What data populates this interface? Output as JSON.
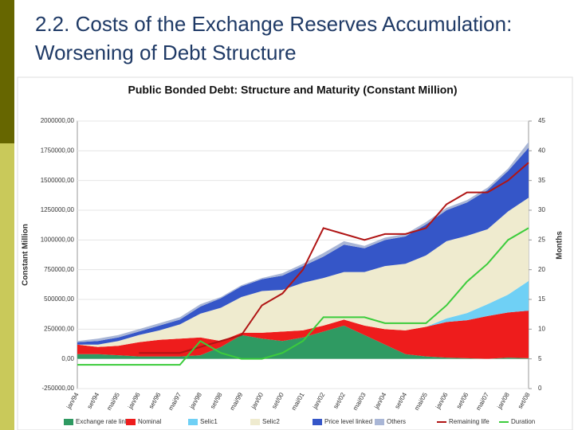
{
  "slide_title": "2.2. Costs of the Exchange Reserves Accumulation: Worsening of Debt Structure",
  "chart_data": {
    "type": "area",
    "stacked": true,
    "title": "Public Bonded Debt: Structure and Maturity (Constant Million)",
    "y_label": "Constant Million",
    "y2_label": "Months",
    "categories": [
      "jan/94",
      "set/94",
      "mai/95",
      "jan/96",
      "set/96",
      "mai/97",
      "jan/98",
      "set/98",
      "mai/99",
      "jan/00",
      "set/00",
      "mai/01",
      "jan/02",
      "set/02",
      "mai/03",
      "jan/04",
      "set/04",
      "mai/05",
      "jan/06",
      "set/06",
      "mai/07",
      "jan/08",
      "set/08"
    ],
    "ylim": [
      -250000,
      2000000
    ],
    "yticks": [
      {
        "value": -250000,
        "label": "-250000,00"
      },
      {
        "value": 0,
        "label": "0,00"
      },
      {
        "value": 250000,
        "label": "250000,00"
      },
      {
        "value": 500000,
        "label": "500000,00"
      },
      {
        "value": 750000,
        "label": "750000,00"
      },
      {
        "value": 1000000,
        "label": "1000000,00"
      },
      {
        "value": 1250000,
        "label": "1250000,00"
      },
      {
        "value": 1500000,
        "label": "1500000,00"
      },
      {
        "value": 1750000,
        "label": "1750000,00"
      },
      {
        "value": 2000000,
        "label": "2000000,00"
      }
    ],
    "y2lim": [
      0,
      45
    ],
    "y2ticks": [
      0,
      5,
      10,
      15,
      20,
      25,
      30,
      35,
      40,
      45
    ],
    "series": [
      {
        "name": "Exchange rate linked",
        "color": "#2f9a62",
        "values": [
          40000,
          40000,
          30000,
          20000,
          20000,
          20000,
          30000,
          100000,
          200000,
          170000,
          150000,
          180000,
          230000,
          280000,
          200000,
          120000,
          40000,
          20000,
          10000,
          5000,
          0,
          10000,
          5000
        ]
      },
      {
        "name": "Nominal",
        "color": "#ee1c1c",
        "values": [
          80000,
          60000,
          80000,
          120000,
          140000,
          150000,
          150000,
          50000,
          20000,
          50000,
          80000,
          60000,
          50000,
          50000,
          80000,
          130000,
          200000,
          250000,
          300000,
          320000,
          360000,
          380000,
          400000
        ]
      },
      {
        "name": "Selic1",
        "color": "#6fd0f5",
        "values": [
          0,
          0,
          0,
          0,
          0,
          0,
          0,
          0,
          0,
          0,
          0,
          0,
          0,
          0,
          0,
          0,
          0,
          0,
          30000,
          60000,
          100000,
          150000,
          250000
        ]
      },
      {
        "name": "Selic2",
        "color": "#efebcf",
        "values": [
          0,
          20000,
          40000,
          60000,
          80000,
          120000,
          200000,
          280000,
          300000,
          350000,
          350000,
          400000,
          400000,
          400000,
          450000,
          530000,
          560000,
          600000,
          650000,
          650000,
          630000,
          700000,
          700000
        ]
      },
      {
        "name": "Price level linked",
        "color": "#3556c8",
        "values": [
          20000,
          30000,
          30000,
          30000,
          40000,
          40000,
          60000,
          80000,
          90000,
          100000,
          120000,
          140000,
          180000,
          230000,
          200000,
          220000,
          230000,
          260000,
          260000,
          280000,
          330000,
          340000,
          420000
        ]
      },
      {
        "name": "Others",
        "color": "#a9b6d6",
        "values": [
          10000,
          20000,
          20000,
          20000,
          20000,
          20000,
          20000,
          10000,
          10000,
          10000,
          20000,
          20000,
          30000,
          30000,
          20000,
          20000,
          20000,
          20000,
          20000,
          20000,
          20000,
          20000,
          50000
        ]
      },
      {
        "name": "Remaining life",
        "color": "#b01515",
        "type": "line",
        "axis": "y2",
        "values": [
          null,
          null,
          null,
          6,
          6,
          6,
          7,
          8,
          9,
          14,
          16,
          20,
          27,
          26,
          25,
          26,
          26,
          27,
          31,
          33,
          33,
          35,
          38
        ]
      },
      {
        "name": "Duration",
        "color": "#3ccc3c",
        "type": "line",
        "axis": "y2",
        "values": [
          4,
          4,
          4,
          4,
          4,
          4,
          8,
          6,
          5,
          5,
          6,
          8,
          12,
          12,
          12,
          11,
          11,
          11,
          14,
          18,
          21,
          25,
          27
        ]
      }
    ]
  }
}
